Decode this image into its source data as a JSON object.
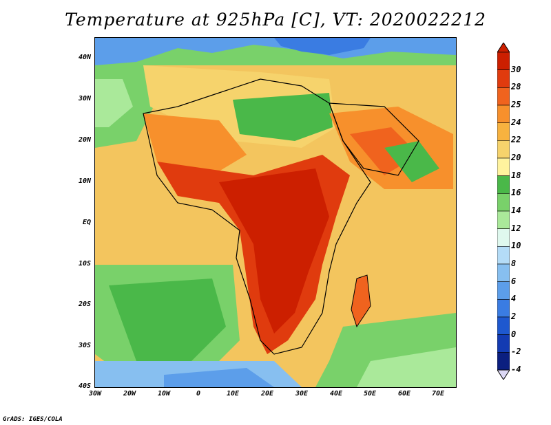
{
  "title": "Temperature at 925hPa [C], VT: 2020022212",
  "footer": "GrADS: IGES/COLA",
  "map": {
    "projection": "lat-lon",
    "lon_range": [
      -30,
      75
    ],
    "lat_range": [
      -40,
      45
    ],
    "lat_labels": [
      "40N",
      "30N",
      "20N",
      "10N",
      "EQ",
      "10S",
      "20S",
      "30S",
      "40S"
    ],
    "lon_labels": [
      "30W",
      "20W",
      "10W",
      "0",
      "10E",
      "20E",
      "30E",
      "40E",
      "50E",
      "60E",
      "70E"
    ],
    "overlay": "country boundaries"
  },
  "colorbar": {
    "labels": [
      "30",
      "28",
      "25",
      "24",
      "22",
      "20",
      "18",
      "16",
      "14",
      "12",
      "10",
      "8",
      "6",
      "4",
      "2",
      "0",
      "-2",
      "-4"
    ],
    "colors": [
      "#cc1f00",
      "#e03b0e",
      "#f0631e",
      "#f7902c",
      "#f7b23f",
      "#f6d36c",
      "#fff39e",
      "#4ab849",
      "#79d16a",
      "#aae99a",
      "#dff8ee",
      "#b4dcf7",
      "#87bff0",
      "#5c9eea",
      "#3a7ce2",
      "#1e58cf",
      "#133bb2",
      "#0b1f80"
    ]
  }
}
